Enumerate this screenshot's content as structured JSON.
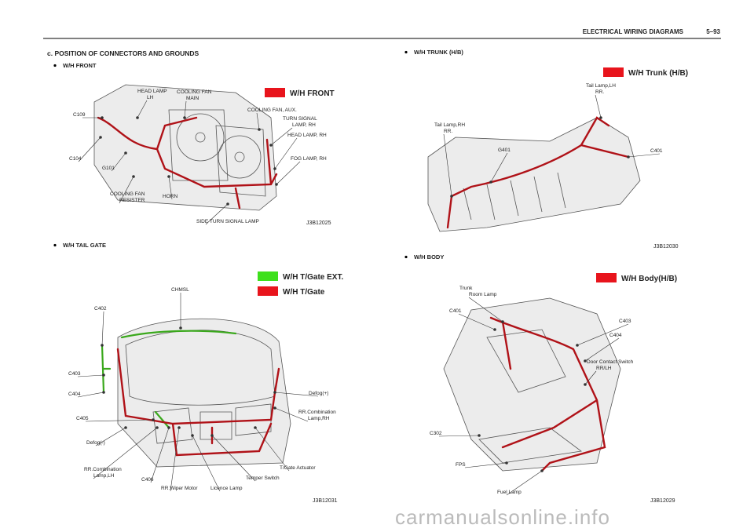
{
  "header": {
    "title": "ELECTRICAL WIRING DIAGRAMS",
    "page": "5–93"
  },
  "section_title": "c. POSITION OF CONNECTORS AND GROUNDS",
  "panels": [
    {
      "bullet": "W/H FRONT",
      "legend": [
        {
          "label": "W/H FRONT",
          "color": "#e8141c"
        }
      ],
      "labels": [
        [
          "C109"
        ],
        [
          "C104"
        ],
        [
          "G101"
        ],
        [
          "HEAD LAMP",
          "LH"
        ],
        [
          "COOLING FAN",
          "MAIN"
        ],
        [
          "COOLING FAN, AUX."
        ],
        [
          "TURN SIGNAL",
          "LAMP, RH"
        ],
        [
          "HEAD LAMP, RH"
        ],
        [
          "FOG LAMP, RH"
        ],
        [
          "COOLING FAN",
          "RESISTER"
        ],
        [
          "HORN"
        ],
        [
          "SIDE TURN SIGNAL LAMP"
        ]
      ],
      "code": "J3B12025"
    },
    {
      "bullet": "W/H TAIL GATE",
      "legend": [
        {
          "label": "W/H T/Gate EXT.",
          "color": "#3ee01c"
        },
        {
          "label": "W/H T/Gate",
          "color": "#e8141c"
        }
      ],
      "labels": [
        [
          "CHMSL"
        ],
        [
          "C402"
        ],
        [
          "C403"
        ],
        [
          "C404"
        ],
        [
          "C405"
        ],
        [
          "Defog(-)"
        ],
        [
          "RR.Combination",
          "Lamp,LH"
        ],
        [
          "C406"
        ],
        [
          "RR.Wiper Motor"
        ],
        [
          "Licence Lamp"
        ],
        [
          "Temper Switch"
        ],
        [
          "T/Gate Actuator"
        ],
        [
          "RR.Combination",
          "Lamp,RH"
        ],
        [
          "Defog(+)"
        ]
      ],
      "code": "J3B12031"
    },
    {
      "bullet": "W/H TRUNK (H/B)",
      "legend": [
        {
          "label": "W/H Trunk (H/B)",
          "color": "#e8141c"
        }
      ],
      "labels": [
        [
          "Tail Lamp,LH",
          "RR."
        ],
        [
          "Tail Lamp,RH",
          "RR."
        ],
        [
          "G401"
        ],
        [
          "C401"
        ]
      ],
      "code": "J3B12030"
    },
    {
      "bullet": "W/H BODY",
      "legend": [
        {
          "label": "W/H Body(H/B)",
          "color": "#e8141c"
        }
      ],
      "labels": [
        [
          "Trunk",
          "Room Lamp"
        ],
        [
          "C401"
        ],
        [
          "C403"
        ],
        [
          "C404"
        ],
        [
          "Door Contact Switch",
          "RR/LH"
        ],
        [
          "C302"
        ],
        [
          "FPS"
        ],
        [
          "Fuel Lamp"
        ]
      ],
      "code": "J3B12029"
    }
  ],
  "watermark": "carmanualsonline.info"
}
